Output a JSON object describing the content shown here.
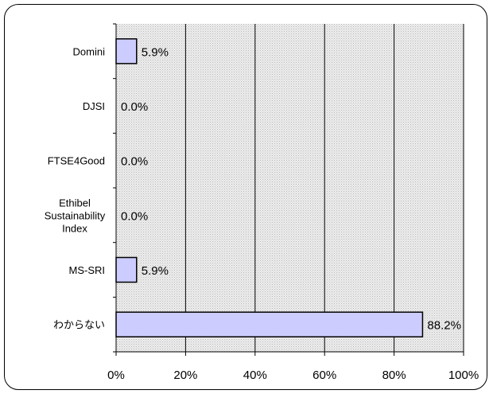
{
  "chart_data": {
    "type": "bar",
    "orientation": "horizontal",
    "categories": [
      [
        "Domini"
      ],
      [
        "DJSI"
      ],
      [
        "FTSE4Good"
      ],
      [
        "Ethibel",
        "Sustainability",
        "Index"
      ],
      [
        "MS-SRI"
      ],
      [
        "わからない"
      ]
    ],
    "values": [
      5.9,
      0.0,
      0.0,
      0.0,
      5.9,
      88.2
    ],
    "value_labels": [
      "5.9%",
      "0.0%",
      "0.0%",
      "0.0%",
      "5.9%",
      "88.2%"
    ],
    "xlim": [
      0,
      100
    ],
    "x_ticks": [
      0,
      20,
      40,
      60,
      80,
      100
    ],
    "x_tick_labels": [
      "0%",
      "20%",
      "40%",
      "60%",
      "80%",
      "100%"
    ],
    "grid": true,
    "colors": {
      "bar_fill": "#ccccff",
      "bar_stroke": "#000000",
      "plot_bg": "#e3e3e3",
      "gridline": "#000000"
    }
  }
}
